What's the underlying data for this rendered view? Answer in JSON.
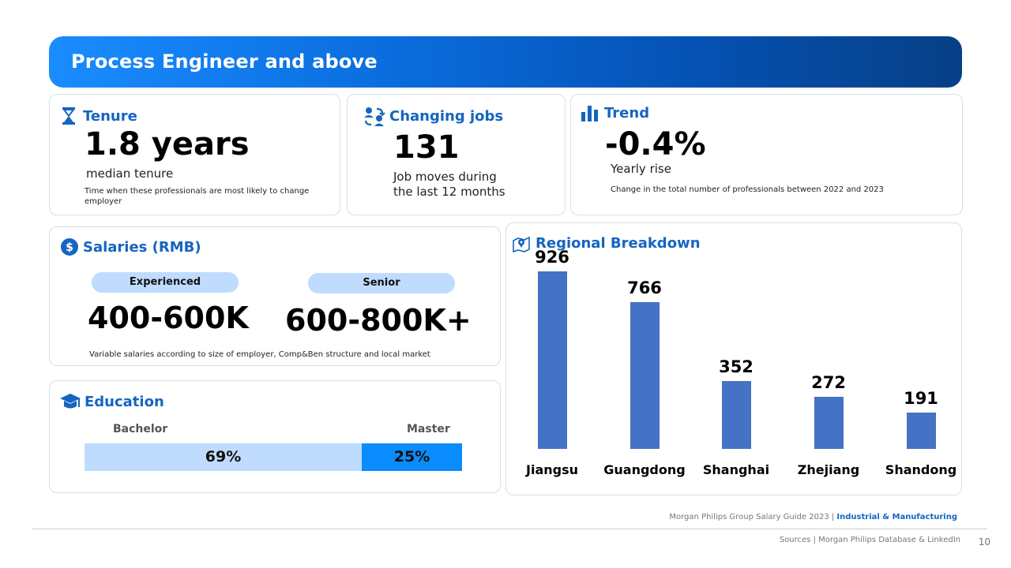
{
  "header": {
    "title": "Process Engineer and above"
  },
  "tenure": {
    "title": "Tenure",
    "value": "1.8 years",
    "label": "median tenure",
    "note": "Time when these professionals are most likely to  change employer"
  },
  "jobs": {
    "title": "Changing jobs",
    "value": "131",
    "label_line1": "Job moves during",
    "label_line2": "the last 12 months"
  },
  "trend": {
    "title": "Trend",
    "value": "-0.4%",
    "label": "Yearly rise",
    "note": "Change in the total number of professionals between 2022 and 2023"
  },
  "salaries": {
    "title": "Salaries (RMB)",
    "levels": [
      {
        "name": "Experienced",
        "range": "400-600K"
      },
      {
        "name": "Senior",
        "range": "600-800K+"
      }
    ],
    "note": "Variable salaries according to size of employer, Comp&Ben structure and local market"
  },
  "education": {
    "title": "Education",
    "segments": [
      {
        "name": "Bachelor",
        "share": "69%",
        "value": 69,
        "color": "#bfdcff"
      },
      {
        "name": "Master",
        "share": "25%",
        "value": 25,
        "color": "#0a8cff"
      }
    ]
  },
  "chart_data": {
    "type": "bar",
    "title": "Regional Breakdown",
    "categories": [
      "Jiangsu",
      "Guangdong",
      "Shanghai",
      "Zhejiang",
      "Shandong"
    ],
    "values": [
      926,
      766,
      352,
      272,
      191
    ],
    "value_labels": [
      "926",
      "766",
      "352",
      "272",
      "191"
    ],
    "xlabel": "",
    "ylabel": "",
    "ylim": [
      0,
      926
    ],
    "color": "#4472c4"
  },
  "footer": {
    "guide": "Morgan Philips Group Salary Guide 2023 |",
    "sector": "Industrial & Manufacturing",
    "sources": "Sources | Morgan Philips Database & LinkedIn",
    "page": "10"
  }
}
